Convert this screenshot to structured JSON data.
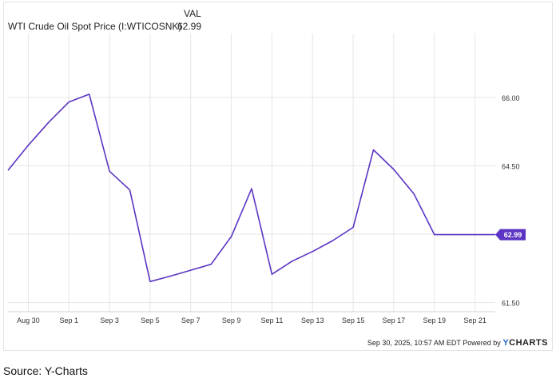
{
  "legend": {
    "header": "VAL",
    "series_name": "WTI Crude Oil Spot Price (I:WTICOSNK)",
    "series_value": "62.99"
  },
  "footer": {
    "timestamp": "Sep 30, 2025, 10:57 AM EDT Powered by",
    "brand_y": "Y",
    "brand_rest": "CHARTS"
  },
  "source": "Source: Y-Charts",
  "colors": {
    "line": "#5b34c4",
    "grid": "#e6e6e6",
    "label_bg": "#5b34c4"
  },
  "chart_data": {
    "type": "line",
    "series": [
      {
        "name": "WTI Crude Oil Spot Price (I:WTICOSNK)",
        "x": [
          "2025-08-29",
          "2025-08-30",
          "2025-08-31",
          "2025-09-01",
          "2025-09-02",
          "2025-09-03",
          "2025-09-04",
          "2025-09-05",
          "2025-09-06",
          "2025-09-07",
          "2025-09-08",
          "2025-09-09",
          "2025-09-10",
          "2025-09-11",
          "2025-09-12",
          "2025-09-13",
          "2025-09-14",
          "2025-09-15",
          "2025-09-16",
          "2025-09-17",
          "2025-09-18",
          "2025-09-19",
          "2025-09-22"
        ],
        "values": [
          64.4,
          64.95,
          65.45,
          65.9,
          66.07,
          64.38,
          63.97,
          61.96,
          62.08,
          62.21,
          62.34,
          62.95,
          64.0,
          62.12,
          62.41,
          62.62,
          62.86,
          63.15,
          64.85,
          64.42,
          63.88,
          62.99,
          62.99
        ]
      }
    ],
    "last_value_label": "62.99",
    "x_ticks": [
      "Aug 30",
      "Sep 1",
      "Sep 3",
      "Sep 5",
      "Sep 7",
      "Sep 9",
      "Sep 11",
      "Sep 13",
      "Sep 15",
      "Sep 17",
      "Sep 19",
      "Sep 21"
    ],
    "x_tick_dates": [
      "2025-08-30",
      "2025-09-01",
      "2025-09-03",
      "2025-09-05",
      "2025-09-07",
      "2025-09-09",
      "2025-09-11",
      "2025-09-13",
      "2025-09-15",
      "2025-09-17",
      "2025-09-19",
      "2025-09-21"
    ],
    "y_ticks": [
      61.5,
      64.5,
      66.0
    ],
    "y_tick_labels": [
      "61.50",
      "64.50",
      "66.00"
    ],
    "ylim": [
      61.3,
      67.4
    ],
    "grid": true,
    "y_axis_side": "right"
  }
}
